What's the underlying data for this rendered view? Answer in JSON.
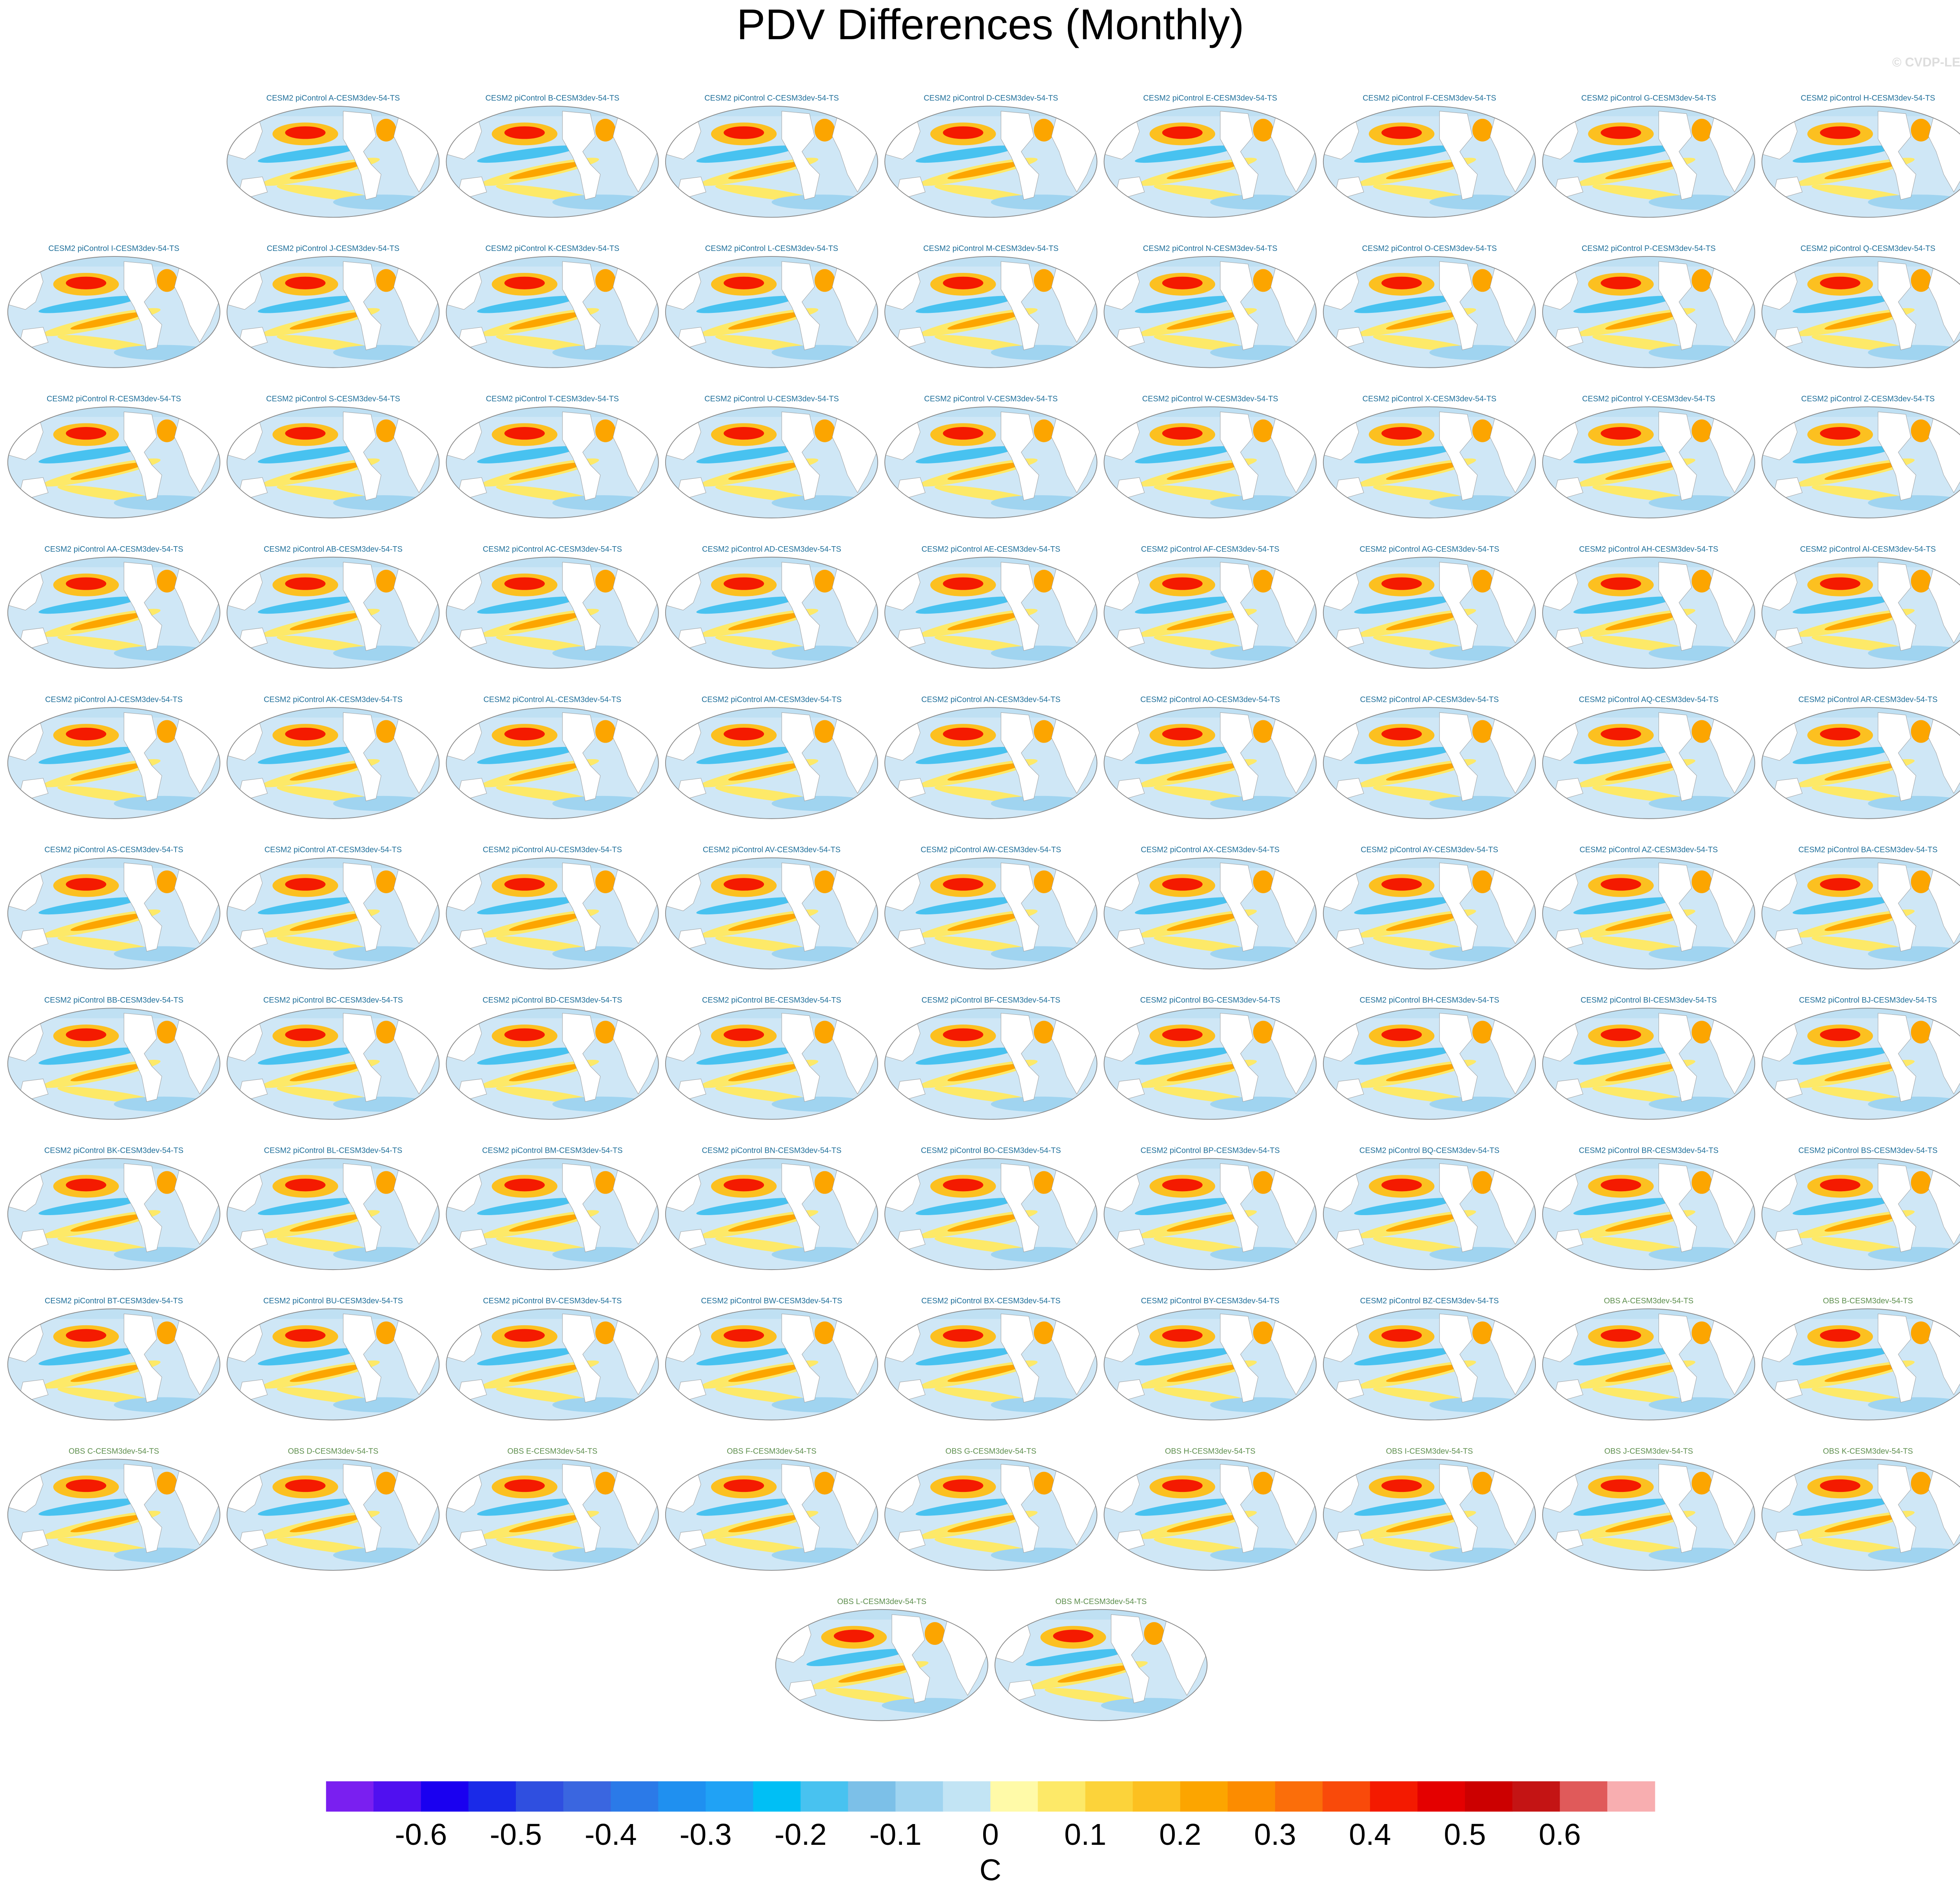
{
  "title": "PDV Differences (Monthly)",
  "watermark": "© CVDP-LE",
  "groups": [
    {
      "color": "#1f6f9a",
      "titles": [
        "CESM2 piControl A-CESM3dev-54-TS",
        "CESM2 piControl B-CESM3dev-54-TS",
        "CESM2 piControl C-CESM3dev-54-TS",
        "CESM2 piControl D-CESM3dev-54-TS",
        "CESM2 piControl E-CESM3dev-54-TS",
        "CESM2 piControl F-CESM3dev-54-TS",
        "CESM2 piControl G-CESM3dev-54-TS",
        "CESM2 piControl H-CESM3dev-54-TS",
        "CESM2 piControl I-CESM3dev-54-TS",
        "CESM2 piControl J-CESM3dev-54-TS",
        "CESM2 piControl K-CESM3dev-54-TS",
        "CESM2 piControl L-CESM3dev-54-TS",
        "CESM2 piControl M-CESM3dev-54-TS",
        "CESM2 piControl N-CESM3dev-54-TS",
        "CESM2 piControl O-CESM3dev-54-TS",
        "CESM2 piControl P-CESM3dev-54-TS",
        "CESM2 piControl Q-CESM3dev-54-TS",
        "CESM2 piControl R-CESM3dev-54-TS",
        "CESM2 piControl S-CESM3dev-54-TS",
        "CESM2 piControl T-CESM3dev-54-TS",
        "CESM2 piControl U-CESM3dev-54-TS",
        "CESM2 piControl V-CESM3dev-54-TS",
        "CESM2 piControl W-CESM3dev-54-TS",
        "CESM2 piControl X-CESM3dev-54-TS",
        "CESM2 piControl Y-CESM3dev-54-TS",
        "CESM2 piControl Z-CESM3dev-54-TS",
        "CESM2 piControl AA-CESM3dev-54-TS",
        "CESM2 piControl AB-CESM3dev-54-TS",
        "CESM2 piControl AC-CESM3dev-54-TS",
        "CESM2 piControl AD-CESM3dev-54-TS",
        "CESM2 piControl AE-CESM3dev-54-TS",
        "CESM2 piControl AF-CESM3dev-54-TS",
        "CESM2 piControl AG-CESM3dev-54-TS",
        "CESM2 piControl AH-CESM3dev-54-TS",
        "CESM2 piControl AI-CESM3dev-54-TS",
        "CESM2 piControl AJ-CESM3dev-54-TS",
        "CESM2 piControl AK-CESM3dev-54-TS",
        "CESM2 piControl AL-CESM3dev-54-TS",
        "CESM2 piControl AM-CESM3dev-54-TS",
        "CESM2 piControl AN-CESM3dev-54-TS",
        "CESM2 piControl AO-CESM3dev-54-TS",
        "CESM2 piControl AP-CESM3dev-54-TS",
        "CESM2 piControl AQ-CESM3dev-54-TS",
        "CESM2 piControl AR-CESM3dev-54-TS",
        "CESM2 piControl AS-CESM3dev-54-TS",
        "CESM2 piControl AT-CESM3dev-54-TS",
        "CESM2 piControl AU-CESM3dev-54-TS",
        "CESM2 piControl AV-CESM3dev-54-TS",
        "CESM2 piControl AW-CESM3dev-54-TS",
        "CESM2 piControl AX-CESM3dev-54-TS",
        "CESM2 piControl AY-CESM3dev-54-TS",
        "CESM2 piControl AZ-CESM3dev-54-TS",
        "CESM2 piControl BA-CESM3dev-54-TS",
        "CESM2 piControl BB-CESM3dev-54-TS",
        "CESM2 piControl BC-CESM3dev-54-TS",
        "CESM2 piControl BD-CESM3dev-54-TS",
        "CESM2 piControl BE-CESM3dev-54-TS",
        "CESM2 piControl BF-CESM3dev-54-TS",
        "CESM2 piControl BG-CESM3dev-54-TS",
        "CESM2 piControl BH-CESM3dev-54-TS",
        "CESM2 piControl BI-CESM3dev-54-TS",
        "CESM2 piControl BJ-CESM3dev-54-TS",
        "CESM2 piControl BK-CESM3dev-54-TS",
        "CESM2 piControl BL-CESM3dev-54-TS",
        "CESM2 piControl BM-CESM3dev-54-TS",
        "CESM2 piControl BN-CESM3dev-54-TS",
        "CESM2 piControl BO-CESM3dev-54-TS",
        "CESM2 piControl BP-CESM3dev-54-TS",
        "CESM2 piControl BQ-CESM3dev-54-TS",
        "CESM2 piControl BR-CESM3dev-54-TS",
        "CESM2 piControl BS-CESM3dev-54-TS",
        "CESM2 piControl BT-CESM3dev-54-TS",
        "CESM2 piControl BU-CESM3dev-54-TS",
        "CESM2 piControl BV-CESM3dev-54-TS",
        "CESM2 piControl BW-CESM3dev-54-TS",
        "CESM2 piControl BX-CESM3dev-54-TS",
        "CESM2 piControl BY-CESM3dev-54-TS",
        "CESM2 piControl BZ-CESM3dev-54-TS"
      ]
    },
    {
      "color": "#5e8f4e",
      "titles": [
        "OBS A-CESM3dev-54-TS",
        "OBS B-CESM3dev-54-TS",
        "OBS C-CESM3dev-54-TS",
        "OBS D-CESM3dev-54-TS",
        "OBS E-CESM3dev-54-TS",
        "OBS F-CESM3dev-54-TS",
        "OBS G-CESM3dev-54-TS",
        "OBS H-CESM3dev-54-TS",
        "OBS I-CESM3dev-54-TS",
        "OBS J-CESM3dev-54-TS",
        "OBS K-CESM3dev-54-TS",
        "OBS L-CESM3dev-54-TS",
        "OBS M-CESM3dev-54-TS"
      ]
    }
  ],
  "colorbar": {
    "colors": [
      "#7a1ff0",
      "#5010f0",
      "#1a00f0",
      "#1a2ae8",
      "#2f4fe0",
      "#3a66e0",
      "#2b7ae8",
      "#1f90f0",
      "#20a2f5",
      "#00bff5",
      "#48c2f0",
      "#7cc0e8",
      "#a0d4f0",
      "#c2e4f4",
      "#fffaa8",
      "#fde968",
      "#fcd33a",
      "#fcc020",
      "#fca500",
      "#fc8c00",
      "#fb6e0a",
      "#f94a0a",
      "#f41a00",
      "#e40000",
      "#cc0000",
      "#c41414",
      "#e05a5a",
      "#f8aeb0"
    ],
    "xlim": [
      -0.7,
      0.7
    ],
    "xticks": [
      -0.6,
      -0.5,
      -0.4,
      -0.3,
      -0.2,
      -0.1,
      0,
      0.1,
      0.2,
      0.3,
      0.4,
      0.5,
      0.6
    ],
    "label": "C"
  }
}
